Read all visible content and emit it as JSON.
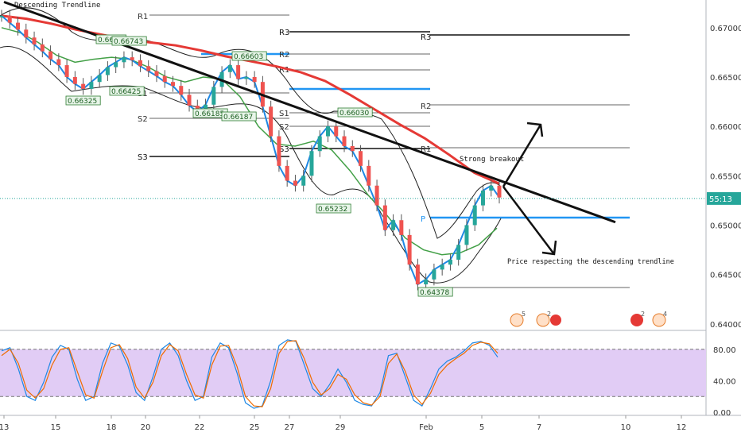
{
  "chart_data": [
    {
      "type": "candlestick",
      "title": "",
      "annotations": {
        "top_left": "Descending Trendline",
        "breakout": "Strong breakout",
        "respect": "Price respecting the descending trendline"
      },
      "y_axis": {
        "ylim": [
          0.6395,
          0.6728
        ],
        "ticks": [
          "0.67000",
          "0.66500",
          "0.66000",
          "0.65500",
          "0.65000",
          "0.64500",
          "0.64000"
        ]
      },
      "x_axis": {
        "ticks": [
          "13",
          "15",
          "18",
          "20",
          "22",
          "25",
          "27",
          "29",
          "Feb",
          "5",
          "7",
          "10",
          "12"
        ]
      },
      "current_price_label": "55:13",
      "current_price_value": 0.6527,
      "colors": {
        "up": "#26a69a",
        "down": "#ef5350",
        "ma_fast": "#1e88e5",
        "ma_mid": "#43a047",
        "ma_slow": "#e53935",
        "trendline": "#111111",
        "pivot_blue": "#2196f3"
      },
      "price_labels": [
        "0.66325",
        "0.6674",
        "0.66743",
        "0.66425",
        "0.66603",
        "0.66185",
        "0.66187",
        "0.66030",
        "0.65232",
        "0.64378"
      ],
      "pivot_labels": [
        "R1",
        "R2",
        "R1",
        "R3",
        "R3",
        "R2",
        "S1",
        "S2",
        "S1",
        "S2",
        "S3",
        "S3",
        "R1",
        "P"
      ],
      "series": [
        {
          "name": "",
          "role": "price",
          "values": [
            0.6712,
            0.6705,
            0.6698,
            0.669,
            0.6683,
            0.6676,
            0.6668,
            0.6662,
            0.665,
            0.6643,
            0.6638,
            0.6645,
            0.6652,
            0.666,
            0.6665,
            0.667,
            0.6667,
            0.6661,
            0.6656,
            0.6651,
            0.6645,
            0.6641,
            0.6632,
            0.6621,
            0.6615,
            0.6622,
            0.664,
            0.6655,
            0.6662,
            0.6648,
            0.665,
            0.6645,
            0.662,
            0.659,
            0.656,
            0.6545,
            0.654,
            0.655,
            0.6575,
            0.659,
            0.66,
            0.659,
            0.658,
            0.6575,
            0.656,
            0.654,
            0.652,
            0.6495,
            0.6505,
            0.649,
            0.646,
            0.644,
            0.6445,
            0.6455,
            0.646,
            0.6465,
            0.648,
            0.65,
            0.652,
            0.6535,
            0.654,
            0.6528
          ]
        },
        {
          "name": "",
          "role": "slow MA",
          "values": [
            0.6712,
            0.6709,
            0.6704,
            0.6698,
            0.6693,
            0.6688,
            0.6685,
            0.6682,
            0.6677,
            0.6671,
            0.6666,
            0.6661,
            0.6655,
            0.6646,
            0.6632,
            0.6617,
            0.6602,
            0.6588,
            0.6571,
            0.6553,
            0.6542
          ]
        },
        {
          "name": "",
          "role": "mid MA",
          "values": [
            0.67,
            0.6695,
            0.6685,
            0.6672,
            0.6665,
            0.6668,
            0.667,
            0.6668,
            0.666,
            0.665,
            0.6645,
            0.665,
            0.6648,
            0.663,
            0.66,
            0.6582,
            0.658,
            0.6585,
            0.6576,
            0.6555,
            0.653,
            0.651,
            0.6487,
            0.6475,
            0.647,
            0.6472,
            0.648,
            0.6497
          ]
        }
      ],
      "trendline": {
        "from": {
          "x": "13",
          "y": 0.6726
        },
        "to": {
          "x": "10",
          "y": 0.6503
        }
      }
    },
    {
      "type": "line",
      "title": "",
      "ylim": [
        -2,
        102
      ],
      "ticks": [
        "80.00",
        "40.00",
        "0.00"
      ],
      "bands": [
        20,
        80
      ],
      "series": [
        {
          "name": "",
          "values": [
            78,
            82,
            55,
            20,
            15,
            38,
            70,
            85,
            80,
            42,
            15,
            20,
            62,
            88,
            84,
            60,
            25,
            15,
            45,
            80,
            88,
            72,
            40,
            15,
            20,
            70,
            88,
            82,
            50,
            12,
            5,
            8,
            40,
            85,
            92,
            90,
            60,
            30,
            20,
            35,
            55,
            38,
            15,
            10,
            8,
            25,
            72,
            75,
            45,
            15,
            8,
            30,
            55,
            65,
            70,
            78,
            88,
            90,
            85,
            70
          ]
        },
        {
          "name": "",
          "values": [
            72,
            80,
            62,
            28,
            18,
            30,
            60,
            80,
            82,
            52,
            22,
            18,
            52,
            82,
            86,
            68,
            32,
            18,
            38,
            72,
            86,
            78,
            48,
            22,
            18,
            60,
            84,
            85,
            58,
            20,
            8,
            7,
            30,
            75,
            90,
            91,
            68,
            38,
            22,
            30,
            48,
            42,
            22,
            12,
            9,
            20,
            62,
            74,
            52,
            22,
            10,
            24,
            48,
            60,
            68,
            75,
            85,
            89,
            87,
            75
          ]
        }
      ]
    }
  ]
}
